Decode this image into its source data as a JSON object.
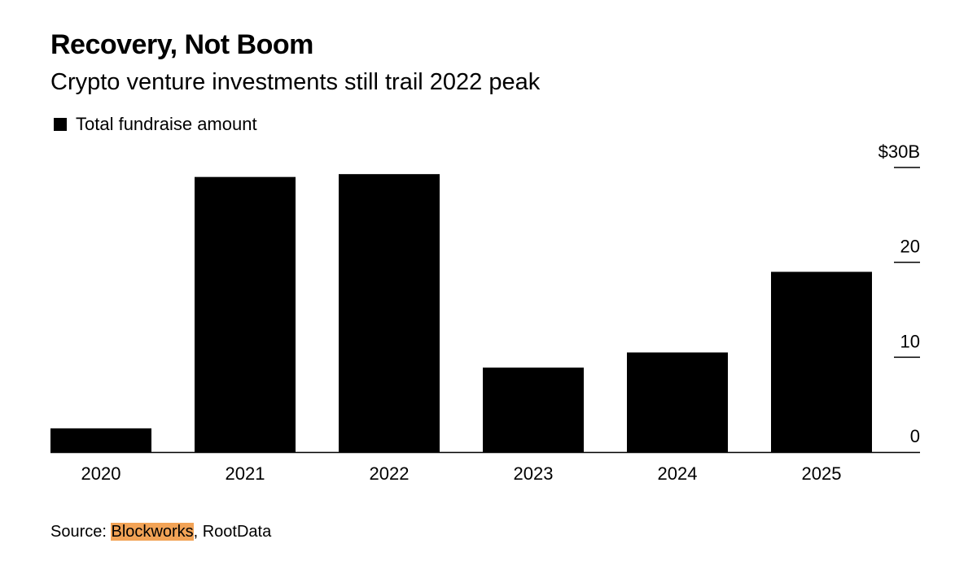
{
  "header": {
    "title": "Recovery, Not Boom",
    "subtitle": "Crypto venture investments still trail 2022 peak"
  },
  "legend": {
    "label": "Total fundraise amount"
  },
  "source": {
    "prefix": "Source: ",
    "highlight": "Blockworks",
    "rest": ", RootData"
  },
  "colors": {
    "bar": "#000000",
    "highlight": "#f2a356"
  },
  "chart_data": {
    "type": "bar",
    "title": "Recovery, Not Boom",
    "subtitle": "Crypto venture investments still trail 2022 peak",
    "xlabel": "",
    "ylabel": "",
    "categories": [
      "2020",
      "2021",
      "2022",
      "2023",
      "2024",
      "2025"
    ],
    "series": [
      {
        "name": "Total fundraise amount",
        "values": [
          2.5,
          29.0,
          29.3,
          8.9,
          10.5,
          19.0
        ]
      }
    ],
    "ylim": [
      0,
      30
    ],
    "yticks": [
      0,
      10,
      20,
      30
    ],
    "ytick_labels": [
      "0",
      "10",
      "20",
      "$30B"
    ],
    "y_axis_side": "right",
    "legend_position": "top-left",
    "grid": false
  }
}
